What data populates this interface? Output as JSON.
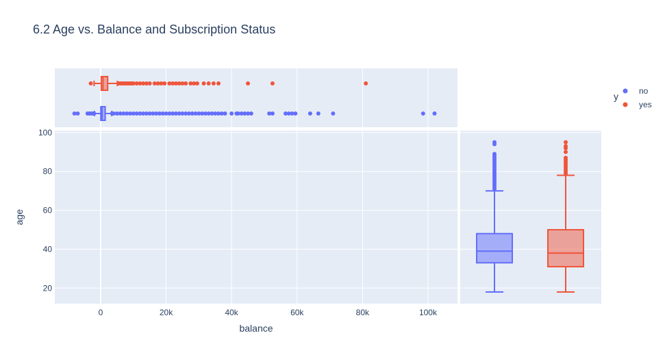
{
  "chart_data": {
    "type": "scatter",
    "title": "6.2 Age vs. Balance and Subscription Status",
    "xlabel": "balance",
    "ylabel": "age",
    "xlim": [
      -14000,
      109000
    ],
    "ylim": [
      12,
      101
    ],
    "x_ticks": [
      0,
      20000,
      40000,
      60000,
      80000,
      100000
    ],
    "x_tick_labels": [
      "0",
      "20k",
      "40k",
      "60k",
      "80k",
      "100k"
    ],
    "y_ticks": [
      20,
      40,
      60,
      80,
      100
    ],
    "y_tick_labels": [
      "20",
      "40",
      "60",
      "80",
      "100"
    ],
    "grid": true,
    "legend": {
      "title": "y",
      "placement": "top-right"
    },
    "colors": {
      "no": "#636efa",
      "yes": "#ef553b",
      "plot_bg": "#e5ecf6",
      "grid": "#ffffff"
    },
    "series": [
      {
        "name": "no",
        "color": "#636efa"
      },
      {
        "name": "yes",
        "color": "#ef553b"
      }
    ],
    "marginal_x_boxplots": [
      {
        "name": "no",
        "q1": 60,
        "median": 420,
        "q3": 1400,
        "lower_fence": -1900,
        "upper_fence": 3400,
        "outliers": [
          -8000,
          -7000,
          -4000,
          -3500,
          -3000,
          -2500,
          -2000,
          3500,
          4000,
          5000,
          6000,
          7000,
          8000,
          9000,
          10000,
          11000,
          12000,
          13000,
          14000,
          15000,
          16000,
          17000,
          18000,
          19000,
          20000,
          21000,
          22000,
          23000,
          24000,
          25000,
          26000,
          27000,
          28000,
          29000,
          30000,
          31000,
          32000,
          33000,
          34000,
          35000,
          36000,
          37000,
          38000,
          40000,
          41500,
          42000,
          43000,
          44000,
          45000,
          46000,
          51500,
          52500,
          56500,
          57500,
          58500,
          59500,
          64000,
          66500,
          71000,
          98500,
          102000
        ]
      },
      {
        "name": "yes",
        "q1": 200,
        "median": 730,
        "q3": 2160,
        "lower_fence": -2000,
        "upper_fence": 5100,
        "outliers": [
          -3000,
          5500,
          6000,
          6500,
          7000,
          7500,
          8000,
          8500,
          9000,
          9500,
          10000,
          11000,
          12000,
          13000,
          14000,
          15000,
          16500,
          17500,
          18500,
          19500,
          21000,
          22000,
          23000,
          24000,
          25000,
          26000,
          27500,
          28500,
          29500,
          31500,
          33000,
          34500,
          36000,
          45000,
          52500,
          81000
        ]
      }
    ],
    "marginal_y_boxplots": [
      {
        "name": "no",
        "q1": 33,
        "median": 39,
        "q3": 48,
        "lower_fence": 18,
        "upper_fence": 70,
        "outliers": [
          71,
          72,
          73,
          74,
          75,
          76,
          77,
          78,
          79,
          80,
          81,
          82,
          83,
          84,
          85,
          86,
          87,
          88,
          89,
          94,
          95
        ]
      },
      {
        "name": "yes",
        "q1": 31,
        "median": 38,
        "q3": 50,
        "lower_fence": 18,
        "upper_fence": 78,
        "outliers": [
          79,
          80,
          81,
          82,
          83,
          84,
          85,
          86,
          87,
          90,
          92,
          93,
          95
        ]
      }
    ]
  }
}
